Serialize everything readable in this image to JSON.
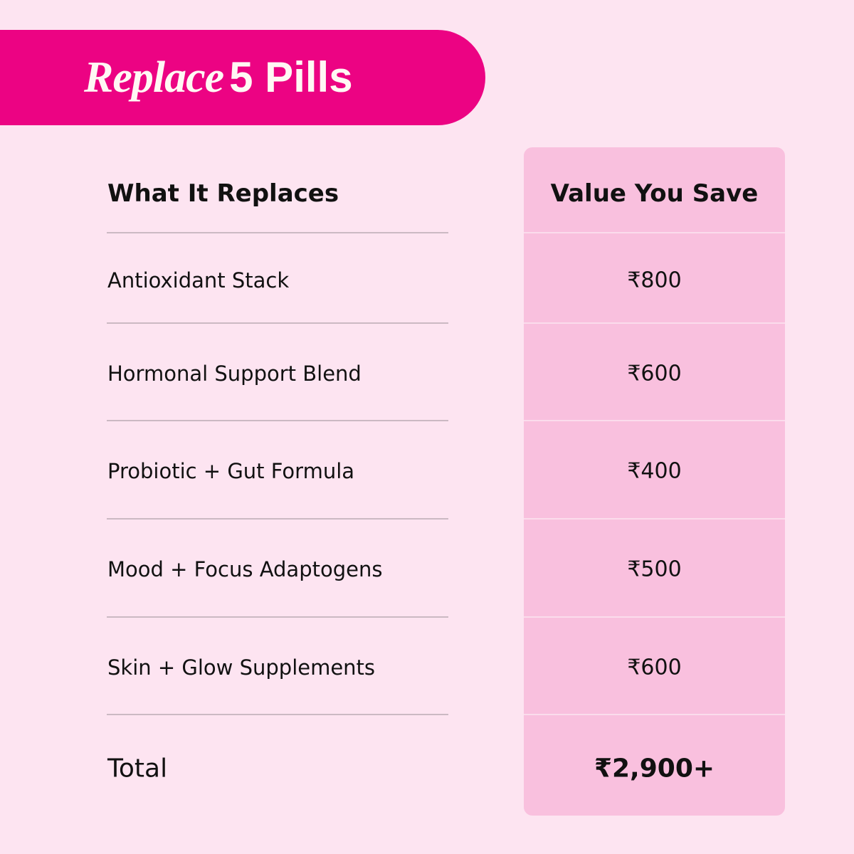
{
  "banner": {
    "title_italic": "Replace",
    "title_rest": "5 Pills",
    "color": "#ec0383"
  },
  "table": {
    "header": {
      "left": "What It Replaces",
      "right": "Value You Save"
    },
    "rows": [
      {
        "item": "Antioxidant Stack",
        "value": "₹800"
      },
      {
        "item": "Hormonal Support Blend",
        "value": "₹600"
      },
      {
        "item": "Probiotic + Gut Formula",
        "value": "₹400"
      },
      {
        "item": "Mood + Focus Adaptogens",
        "value": "₹500"
      },
      {
        "item": "Skin + Glow Supplements",
        "value": "₹600"
      }
    ],
    "total": {
      "label": "Total",
      "value": "₹2,900+"
    }
  },
  "colors": {
    "background": "#fde4f1",
    "panel": "#f9c0de"
  }
}
